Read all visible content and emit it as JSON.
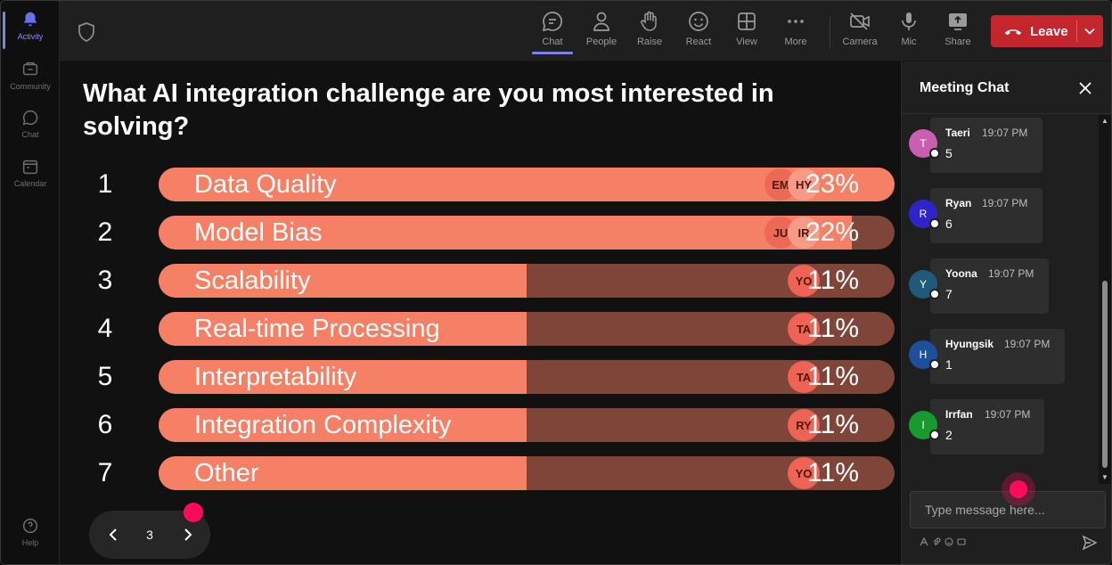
{
  "rail": {
    "items": [
      {
        "label": "Activity",
        "icon": "bell-icon",
        "active": true
      },
      {
        "label": "Community",
        "icon": "community-icon",
        "active": false
      },
      {
        "label": "Chat",
        "icon": "chat-icon",
        "active": false
      },
      {
        "label": "Calendar",
        "icon": "calendar-icon",
        "active": false
      }
    ],
    "help_label": "Help"
  },
  "toolbar": {
    "chat": "Chat",
    "people": "People",
    "raise": "Raise",
    "react": "React",
    "view": "View",
    "more": "More",
    "camera": "Camera",
    "mic": "Mic",
    "share": "Share",
    "leave": "Leave"
  },
  "poll": {
    "question": "What AI integration challenge are you most interested in solving?",
    "options": [
      {
        "num": "1",
        "label": "Data Quality",
        "percent": "23%",
        "fraction": 1.0,
        "avatars": [
          "EM",
          "HY"
        ]
      },
      {
        "num": "2",
        "label": "Model Bias",
        "percent": "22%",
        "fraction": 0.942,
        "avatars": [
          "JU",
          "IR"
        ]
      },
      {
        "num": "3",
        "label": "Scalability",
        "percent": "11%",
        "fraction": 0.5,
        "avatars": [
          "YO"
        ]
      },
      {
        "num": "4",
        "label": "Real-time Processing",
        "percent": "11%",
        "fraction": 0.5,
        "avatars": [
          "TA"
        ]
      },
      {
        "num": "5",
        "label": "Interpretability",
        "percent": "11%",
        "fraction": 0.5,
        "avatars": [
          "TA"
        ]
      },
      {
        "num": "6",
        "label": "Integration Complexity",
        "percent": "11%",
        "fraction": 0.5,
        "avatars": [
          "RY"
        ]
      },
      {
        "num": "7",
        "label": "Other",
        "percent": "11%",
        "fraction": 0.5,
        "avatars": [
          "YO"
        ]
      }
    ],
    "page": "3"
  },
  "chat": {
    "title": "Meeting Chat",
    "messages": [
      {
        "initial": "T",
        "name": "Taeri",
        "time": "19:07 PM",
        "text": "5",
        "color": "#c85fb0"
      },
      {
        "initial": "R",
        "name": "Ryan",
        "time": "19:07 PM",
        "text": "6",
        "color": "#2f24c9"
      },
      {
        "initial": "Y",
        "name": "Yoona",
        "time": "19:07 PM",
        "text": "7",
        "color": "#1f5a78"
      },
      {
        "initial": "H",
        "name": "Hyungsik",
        "time": "19:07 PM",
        "text": "1",
        "color": "#1d4f9a"
      },
      {
        "initial": "I",
        "name": "Irrfan",
        "time": "19:07 PM",
        "text": "2",
        "color": "#179a2e"
      }
    ],
    "placeholder": "Type message here..."
  },
  "colors": {
    "bar_fill": "#f58066",
    "bar_track": "#7f4538",
    "leave": "#c4262e",
    "accent": "#7b83eb",
    "pointer": "#ff0a5f"
  }
}
